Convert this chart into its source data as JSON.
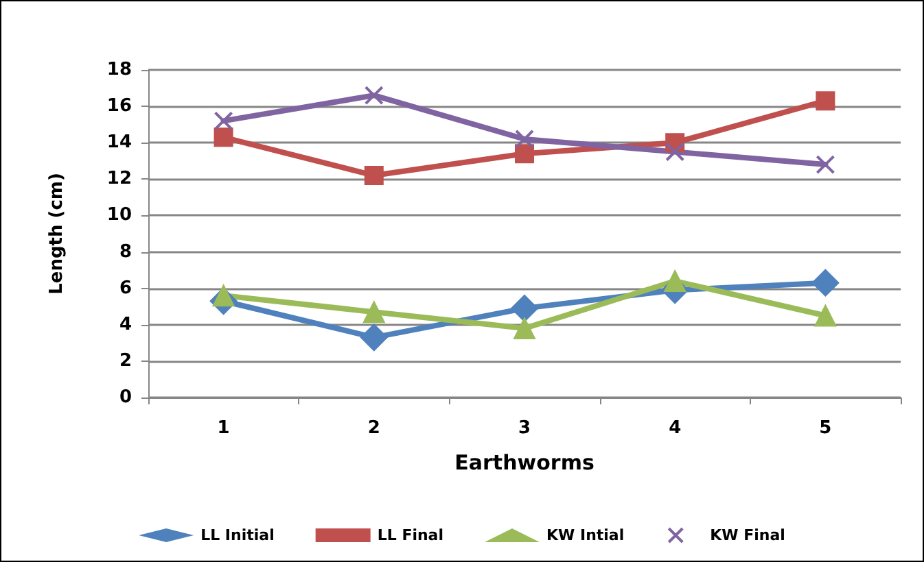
{
  "chart_data": {
    "type": "line",
    "xlabel": "Earthworms",
    "ylabel": "Length (cm)",
    "categories": [
      "1",
      "2",
      "3",
      "4",
      "5"
    ],
    "series": [
      {
        "name": "LL Initial",
        "color": "#4f81bd",
        "marker": "diamond",
        "values": [
          5.3,
          3.3,
          4.9,
          5.9,
          6.3
        ]
      },
      {
        "name": "LL Final",
        "color": "#c0504d",
        "marker": "square",
        "values": [
          14.3,
          12.2,
          13.4,
          14.0,
          16.3
        ]
      },
      {
        "name": "KW Intial",
        "color": "#9bbb59",
        "marker": "triangle",
        "values": [
          5.6,
          4.7,
          3.8,
          6.4,
          4.5
        ]
      },
      {
        "name": "KW Final",
        "color": "#8064a2",
        "marker": "cross",
        "values": [
          15.2,
          16.6,
          14.2,
          13.5,
          12.8
        ]
      }
    ],
    "ylim": [
      0,
      18
    ],
    "yticks": [
      0,
      2,
      4,
      6,
      8,
      10,
      12,
      14,
      16,
      18
    ],
    "grid": "y",
    "legend": "bottom"
  }
}
